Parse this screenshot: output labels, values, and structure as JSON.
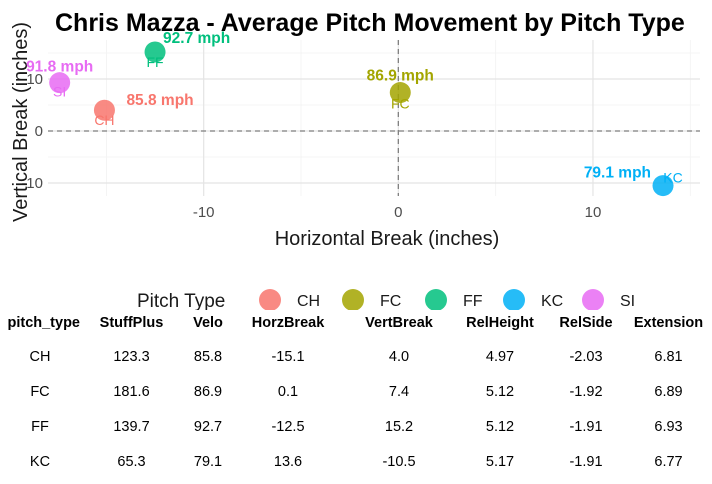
{
  "chart_data": {
    "type": "scatter",
    "title": "Chris Mazza - Average Pitch Movement by Pitch Type",
    "xlabel": "Horizontal Break (inches)",
    "ylabel": "Vertical Break (inches)",
    "xlim": [
      -18,
      15.5
    ],
    "ylim": [
      -12.5,
      17.5
    ],
    "xticks": [
      -10,
      0,
      10
    ],
    "yticks": [
      -10,
      0,
      10
    ],
    "grid": true,
    "reference_lines": {
      "x": 0,
      "y": 0
    },
    "legend_title": "Pitch Type",
    "legend_position": "bottom",
    "series": [
      {
        "name": "CH",
        "x": -15.1,
        "y": 4.0,
        "velo_label": "85.8 mph",
        "color": "#f8766d"
      },
      {
        "name": "FC",
        "x": 0.1,
        "y": 7.4,
        "velo_label": "86.9 mph",
        "color": "#a3a500"
      },
      {
        "name": "FF",
        "x": -12.5,
        "y": 15.2,
        "velo_label": "92.7 mph",
        "color": "#00bf7d"
      },
      {
        "name": "KC",
        "x": 13.6,
        "y": -10.5,
        "velo_label": "79.1 mph",
        "color": "#00b0f6"
      },
      {
        "name": "SI",
        "x": -17.4,
        "y": 9.3,
        "velo_label": "91.8 mph",
        "color": "#e76bf3"
      }
    ]
  },
  "table": {
    "columns": [
      "pitch_type",
      "StuffPlus",
      "Velo",
      "HorzBreak",
      "VertBreak",
      "RelHeight",
      "RelSide",
      "Extension"
    ],
    "rows": [
      [
        "CH",
        "123.3",
        "85.8",
        "-15.1",
        "4.0",
        "4.97",
        "-2.03",
        "6.81"
      ],
      [
        "FC",
        "181.6",
        "86.9",
        "0.1",
        "7.4",
        "5.12",
        "-1.92",
        "6.89"
      ],
      [
        "FF",
        "139.7",
        "92.7",
        "-12.5",
        "15.2",
        "5.12",
        "-1.91",
        "6.93"
      ],
      [
        "KC",
        "65.3",
        "79.1",
        "13.6",
        "-10.5",
        "5.17",
        "-1.91",
        "6.77"
      ]
    ]
  }
}
